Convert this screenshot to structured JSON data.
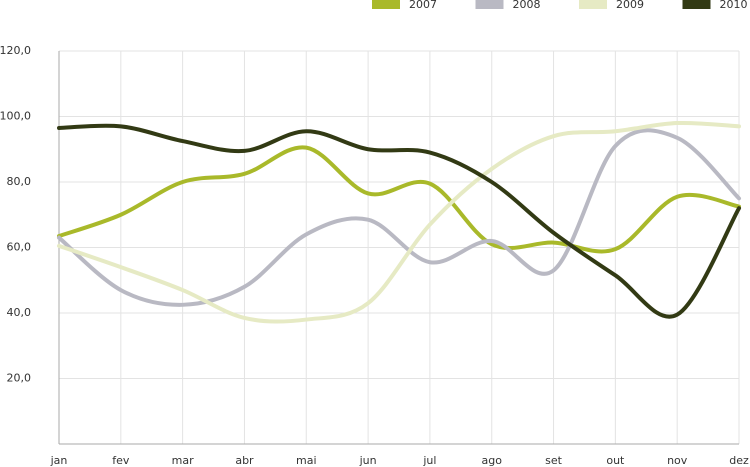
{
  "chart_data": {
    "type": "line",
    "categories": [
      "jan",
      "fev",
      "mar",
      "abr",
      "mai",
      "jun",
      "jul",
      "ago",
      "set",
      "out",
      "nov",
      "dez"
    ],
    "series": [
      {
        "name": "2007",
        "color": "#a9b92a",
        "values": [
          63.5,
          70,
          80,
          82.5,
          90.5,
          76.5,
          79.5,
          61,
          61.5,
          59.5,
          75.5,
          72.5
        ]
      },
      {
        "name": "2008",
        "color": "#b9b9c3",
        "values": [
          63,
          47,
          42.5,
          48,
          64,
          68.5,
          55.5,
          62,
          53,
          91,
          93.5,
          75
        ]
      },
      {
        "name": "2009",
        "color": "#e6eac4",
        "values": [
          60.5,
          54,
          47,
          38.5,
          38,
          43,
          67,
          84,
          94,
          95.5,
          98,
          97
        ]
      },
      {
        "name": "2010",
        "color": "#323a14",
        "values": [
          96.5,
          97,
          92.5,
          89.5,
          95.5,
          90,
          89,
          80,
          64.5,
          51.5,
          39.5,
          72
        ]
      }
    ],
    "ylim": [
      0,
      120
    ],
    "yticks": [
      {
        "value": 20,
        "label": "20,0"
      },
      {
        "value": 40,
        "label": "40,0"
      },
      {
        "value": 60,
        "label": "60,0"
      },
      {
        "value": 80,
        "label": "80,0"
      },
      {
        "value": 100,
        "label": "100,0"
      },
      {
        "value": 120,
        "label": "120,0"
      }
    ],
    "grid": true,
    "legend": "top-right"
  }
}
